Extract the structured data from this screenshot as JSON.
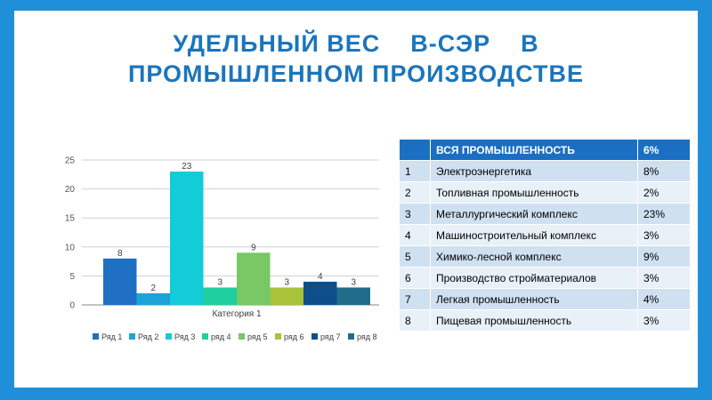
{
  "title": {
    "line1": "УДЕЛЬНЫЙ ВЕС    В-СЭР    В",
    "line2": "ПРОМЫШЛЕННОМ ПРОИЗВОДСТВЕ"
  },
  "table": {
    "header": {
      "num": "",
      "name": "ВСЯ  ПРОМЫШЛЕННОСТЬ",
      "value": "6%"
    },
    "rows": [
      {
        "num": "1",
        "name": "Электроэнергетика",
        "value": "8%"
      },
      {
        "num": "2",
        "name": "Топливная промышленность",
        "value": "2%"
      },
      {
        "num": "3",
        "name": "Металлургический комплекс",
        "value": "23%"
      },
      {
        "num": "4",
        "name": "Машиностроительный комплекс",
        "value": "3%"
      },
      {
        "num": "5",
        "name": "Химико-лесной комплекс",
        "value": "9%"
      },
      {
        "num": "6",
        "name": "Производство стройматериалов",
        "value": "3%"
      },
      {
        "num": "7",
        "name": "Легкая промышленность",
        "value": "4%"
      },
      {
        "num": "8",
        "name": "Пищевая промышленность",
        "value": "3%"
      }
    ]
  },
  "chart_data": {
    "type": "bar",
    "categories": [
      "Категория 1"
    ],
    "series": [
      {
        "name": "Ряд 1",
        "values": [
          8
        ],
        "color": "#1f6fc5"
      },
      {
        "name": "Ряд 2",
        "values": [
          2
        ],
        "color": "#1ea3d8"
      },
      {
        "name": "Ряд 3",
        "values": [
          23
        ],
        "color": "#14cbd8"
      },
      {
        "name": "ряд 4",
        "values": [
          3
        ],
        "color": "#1fcf9f"
      },
      {
        "name": "ряд 5",
        "values": [
          9
        ],
        "color": "#78c865"
      },
      {
        "name": "ряд 6",
        "values": [
          3
        ],
        "color": "#a8c23a"
      },
      {
        "name": "ряд 7",
        "values": [
          4
        ],
        "color": "#0e4e8a"
      },
      {
        "name": "ряд 8",
        "values": [
          3
        ],
        "color": "#1f6d8a"
      }
    ],
    "ylim": [
      0,
      25
    ],
    "yticks": [
      0,
      5,
      10,
      15,
      20,
      25
    ],
    "grid": true,
    "legend": "bottom",
    "data_labels": true
  }
}
